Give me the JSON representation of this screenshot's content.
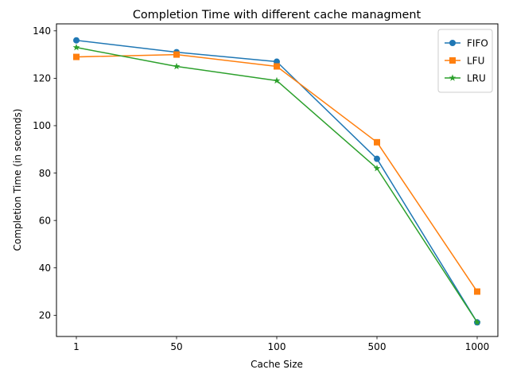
{
  "chart_data": {
    "type": "line",
    "title": "Completion Time with different cache managment",
    "xlabel": "Cache Size",
    "ylabel": "Completion Time (in seconds)",
    "categories": [
      "1",
      "50",
      "100",
      "500",
      "1000"
    ],
    "ylim": [
      11.05,
      142.95
    ],
    "yticks": [
      20,
      40,
      60,
      80,
      100,
      120,
      140
    ],
    "grid": false,
    "legend_position": "top-right",
    "series": [
      {
        "name": "FIFO",
        "color": "#1f77b4",
        "marker": "circle",
        "values": [
          136,
          131,
          127,
          86,
          17
        ]
      },
      {
        "name": "LFU",
        "color": "#ff7f0e",
        "marker": "square",
        "values": [
          129,
          130,
          125,
          93,
          30
        ]
      },
      {
        "name": "LRU",
        "color": "#2ca02c",
        "marker": "star",
        "values": [
          133,
          125,
          119,
          82,
          17
        ]
      }
    ]
  }
}
